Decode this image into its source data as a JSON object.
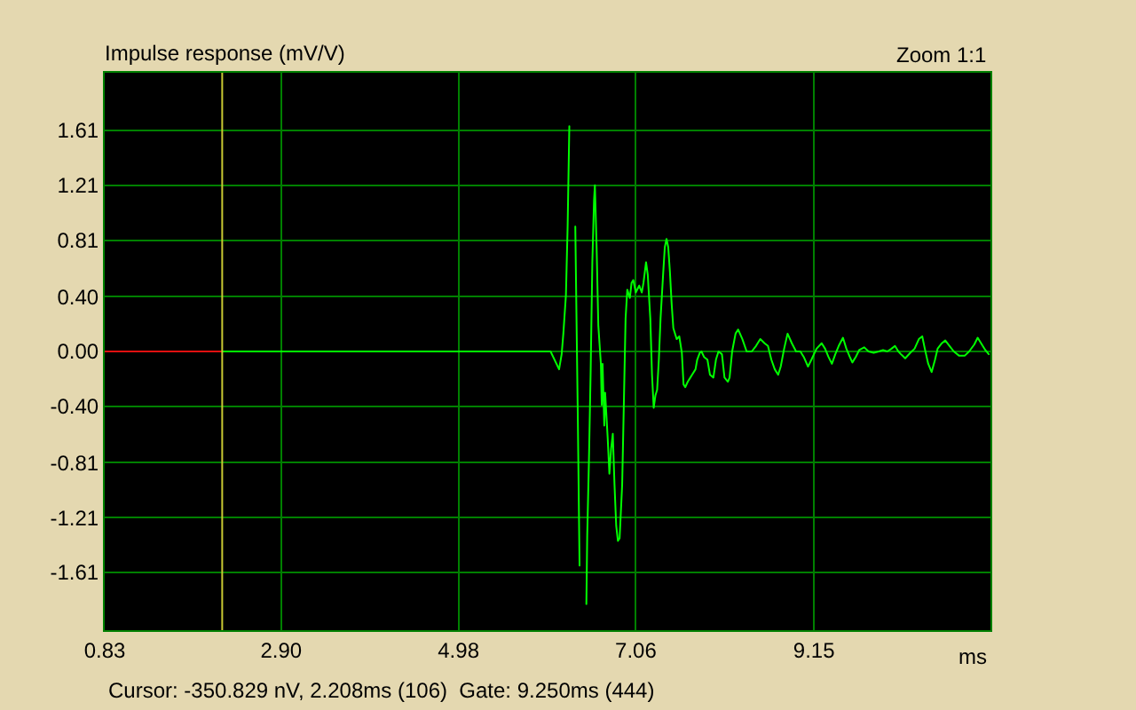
{
  "chart_data": {
    "type": "line",
    "title": "Impulse response (mV/V)",
    "xlabel": "ms",
    "annotations": [
      "Zoom 1:1",
      "Cursor: -350.829 nV, 2.208ms (106)  Gate: 9.250ms (444)"
    ],
    "xlim": [
      0.83,
      11.22
    ],
    "xticks": [
      0.83,
      {
        "value": 2.9,
        "label": "2.90"
      },
      4.98,
      7.06,
      9.15
    ],
    "ylim": [
      -2.03,
      2.03
    ],
    "yticks": [
      {
        "value": -1.61,
        "label": "-1.61"
      },
      {
        "value": -1.21,
        "label": "-1.21"
      },
      {
        "value": -0.81,
        "label": "-0.81"
      },
      {
        "value": -0.4,
        "label": "-0.40"
      },
      {
        "value": 0,
        "label": "0.00"
      },
      {
        "value": 0.4,
        "label": "0.40"
      },
      {
        "value": 0.81,
        "label": "0.81"
      },
      {
        "value": 1.21,
        "label": "1.21"
      },
      {
        "value": 1.61,
        "label": "1.61"
      }
    ],
    "grid": true,
    "ref_lines": [
      {
        "axis": "x",
        "value": 2.208,
        "color": "#c8c832"
      }
    ],
    "series": [
      {
        "color": "#e01010",
        "x": [
          0.83,
          2.21
        ],
        "values": [
          0,
          0
        ]
      },
      {
        "color": "#00ff00",
        "x": [
          2.21,
          6.06,
          6.16,
          6.19,
          6.21,
          6.24,
          6.26,
          6.28,
          6.3,
          6.33,
          6.35,
          6.38,
          6.4,
          6.42,
          6.46,
          6.48,
          6.49,
          6.51,
          6.53,
          6.55,
          6.57,
          6.58,
          6.6,
          6.62,
          6.65,
          6.66,
          6.67,
          6.69,
          6.7,
          6.73,
          6.75,
          6.77,
          6.79,
          6.81,
          6.83,
          6.85,
          6.87,
          6.9,
          6.92,
          6.94,
          6.96,
          6.99,
          7.01,
          7.03,
          7.06,
          7.1,
          7.13,
          7.15,
          7.18,
          7.2,
          7.23,
          7.25,
          7.27,
          7.29,
          7.31,
          7.33,
          7.35,
          7.38,
          7.4,
          7.42,
          7.44,
          7.46,
          7.48,
          7.5,
          7.54,
          7.57,
          7.6,
          7.62,
          7.64,
          7.67,
          7.7,
          7.72,
          7.76,
          7.78,
          7.81,
          7.83,
          7.86,
          7.9,
          7.93,
          7.97,
          8.0,
          8.03,
          8.07,
          8.1,
          8.14,
          8.16,
          8.19,
          8.23,
          8.26,
          8.31,
          8.36,
          8.42,
          8.47,
          8.52,
          8.57,
          8.61,
          8.65,
          8.69,
          8.73,
          8.76,
          8.8,
          8.84,
          8.89,
          8.94,
          8.99,
          9.03,
          9.08,
          9.12,
          9.18,
          9.24,
          9.28,
          9.32,
          9.36,
          9.4,
          9.44,
          9.49,
          9.53,
          9.57,
          9.6,
          9.64,
          9.68,
          9.74,
          9.79,
          9.85,
          9.91,
          9.96,
          10.01,
          10.06,
          10.1,
          10.14,
          10.17,
          10.22,
          10.28,
          10.33,
          10.38,
          10.42,
          10.45,
          10.49,
          10.53,
          10.57,
          10.6,
          10.65,
          10.69,
          10.74,
          10.79,
          10.85,
          10.92,
          10.97,
          11.03,
          11.07,
          11.11,
          11.16,
          11.2
        ],
        "values": [
          0,
          0,
          -0.13,
          -0.02,
          0.13,
          0.41,
          0.91,
          1.64,
          null,
          null,
          0.91,
          -0.5,
          -1.56,
          null,
          null,
          -1.84,
          -1.34,
          -0.8,
          -0.15,
          0.65,
          1.1,
          1.21,
          0.76,
          0.19,
          -0.09,
          -0.39,
          -0.09,
          -0.54,
          -0.3,
          -0.63,
          -0.89,
          -0.71,
          -0.6,
          -0.97,
          -1.27,
          -1.38,
          -1.36,
          -0.97,
          -0.37,
          0.24,
          0.45,
          0.39,
          0.5,
          0.52,
          0.43,
          0.48,
          0.43,
          0.5,
          0.65,
          0.56,
          0.24,
          -0.17,
          -0.41,
          -0.32,
          -0.28,
          -0.06,
          0.24,
          0.56,
          0.76,
          0.82,
          0.76,
          0.58,
          0.35,
          0.17,
          0.09,
          0.11,
          -0.01,
          -0.24,
          -0.26,
          -0.22,
          -0.19,
          -0.17,
          -0.13,
          -0.06,
          -0.01,
          0,
          -0.04,
          -0.06,
          -0.17,
          -0.19,
          -0.06,
          0,
          -0.02,
          -0.19,
          -0.22,
          -0.19,
          0,
          0.13,
          0.16,
          0.09,
          0,
          0,
          0.04,
          0.09,
          0.06,
          0.04,
          -0.06,
          -0.13,
          -0.17,
          -0.11,
          0.02,
          0.13,
          0.06,
          0,
          0,
          -0.04,
          -0.11,
          -0.06,
          0.02,
          0.06,
          0.02,
          -0.04,
          -0.09,
          -0.02,
          0.04,
          0.1,
          0.02,
          -0.04,
          -0.08,
          -0.04,
          0.01,
          0.03,
          0,
          -0.01,
          0,
          0.01,
          0,
          0.02,
          0.04,
          0,
          -0.02,
          -0.05,
          -0.01,
          0.02,
          0.09,
          0.11,
          0.02,
          -0.09,
          -0.15,
          -0.06,
          0.02,
          0.06,
          0.08,
          0.04,
          0,
          -0.03,
          -0.03,
          0,
          0.05,
          0.1,
          0.06,
          0.01,
          -0.02
        ]
      }
    ]
  }
}
